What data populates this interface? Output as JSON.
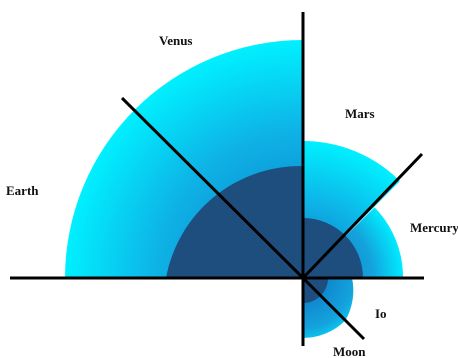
{
  "diagram": {
    "labels": {
      "venus": "Venus",
      "earth": "Earth",
      "mars": "Mars",
      "mercury": "Mercury",
      "io": "Io",
      "moon": "Moon"
    },
    "colors": {
      "light_cyan": "#00f0ff",
      "mid_blue": "#16a6df",
      "dark_core": "#1e4e7e",
      "line": "#000000"
    }
  }
}
